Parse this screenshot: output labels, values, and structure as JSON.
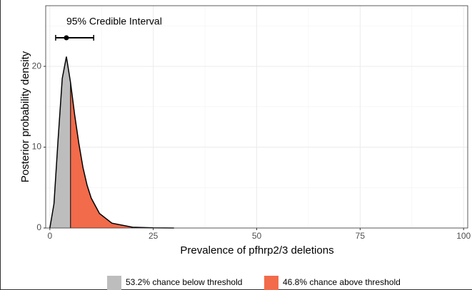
{
  "chart_data": {
    "type": "density",
    "x_label": "Prevalence of pfhrp2/3 deletions",
    "y_label": "Posterior probability density",
    "x": [
      0,
      1,
      2,
      3,
      4,
      5,
      6,
      7,
      8,
      9,
      10,
      12,
      15,
      20,
      25,
      30
    ],
    "values": [
      0,
      3,
      11,
      18.5,
      21.2,
      18,
      14,
      10.5,
      7.5,
      5.3,
      3.7,
      1.8,
      0.6,
      0.1,
      0.02,
      0
    ],
    "line_color": "#000000",
    "threshold": 5,
    "regions": [
      {
        "name": "53.2% chance below threshold",
        "color": "#bdbdbd"
      },
      {
        "name": "46.8% chance above threshold",
        "color": "#f26b4a"
      }
    ],
    "credible_interval": {
      "label": "95% Credible Interval",
      "low": 1.4,
      "estimate": 4,
      "high": 10.6
    },
    "xlim": [
      -1,
      101
    ],
    "ylim": [
      0,
      27.5
    ],
    "xticks": [
      0,
      25,
      50,
      75,
      100
    ],
    "yticks": [
      0,
      10,
      20
    ],
    "x_minor_ticks": [
      12.5,
      37.5,
      62.5,
      87.5
    ],
    "y_minor_ticks": [
      5,
      15,
      25
    ],
    "grid": true
  }
}
